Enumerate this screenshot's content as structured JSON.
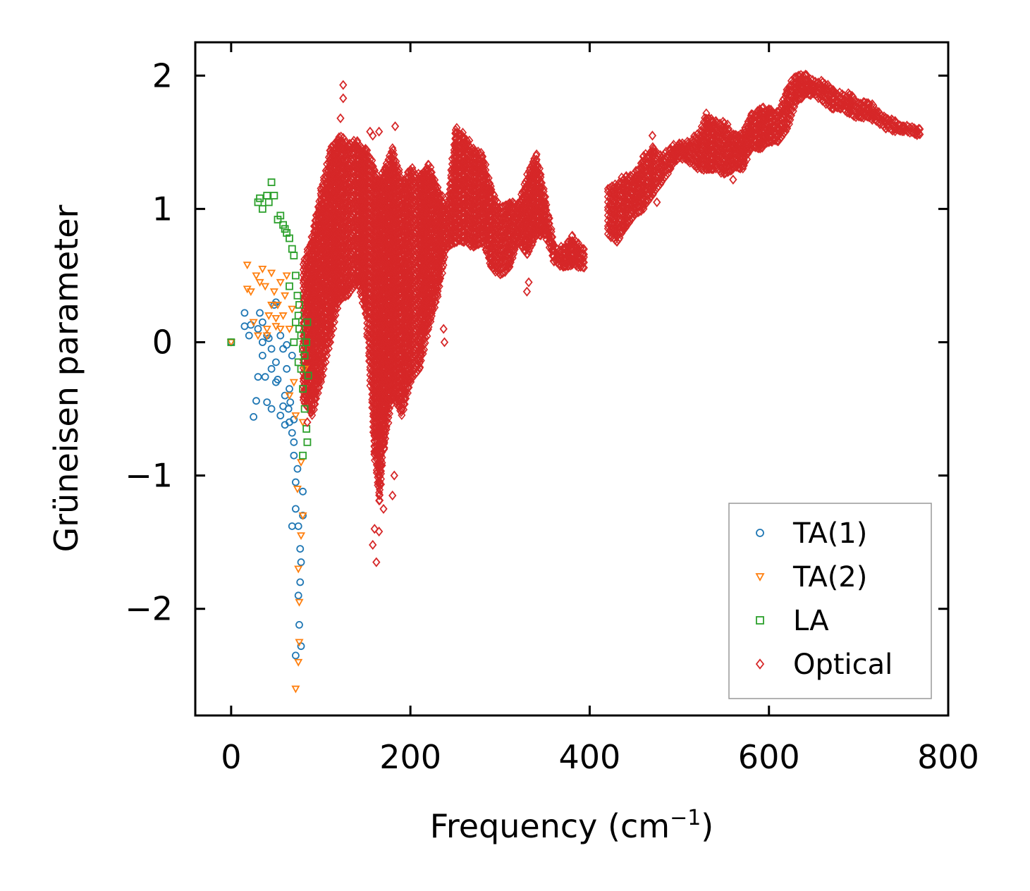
{
  "chart_data": {
    "type": "scatter",
    "title": "",
    "xlabel": "Frequency (cm",
    "xlabel_sup": "−1",
    "xlabel_close": ")",
    "ylabel": "Grüneisen parameter",
    "xlim": [
      -40,
      800
    ],
    "ylim": [
      -2.8,
      2.25
    ],
    "xticks": [
      0,
      200,
      400,
      600,
      800
    ],
    "xtick_labels": [
      "0",
      "200",
      "400",
      "600",
      "800"
    ],
    "yticks": [
      -2,
      -1,
      0,
      1,
      2
    ],
    "ytick_labels": [
      "−2",
      "−1",
      "0",
      "1",
      "2"
    ],
    "legend_position": "lower-right",
    "series": [
      {
        "name": "TA(1)",
        "marker": "circle",
        "color": "#1f77b4",
        "points": [
          [
            0,
            0
          ],
          [
            15,
            0.22
          ],
          [
            15,
            0.12
          ],
          [
            20,
            0.05
          ],
          [
            22,
            0.13
          ],
          [
            25,
            -0.56
          ],
          [
            28,
            -0.44
          ],
          [
            30,
            -0.26
          ],
          [
            32,
            0.22
          ],
          [
            35,
            0.15
          ],
          [
            35,
            0.0
          ],
          [
            35,
            -0.1
          ],
          [
            38,
            -0.26
          ],
          [
            40,
            -0.45
          ],
          [
            42,
            0.03
          ],
          [
            45,
            -0.5
          ],
          [
            45,
            -0.2
          ],
          [
            48,
            0.28
          ],
          [
            50,
            0.3
          ],
          [
            50,
            -0.15
          ],
          [
            52,
            -0.28
          ],
          [
            55,
            -0.55
          ],
          [
            55,
            0.05
          ],
          [
            58,
            -0.48
          ],
          [
            60,
            -0.62
          ],
          [
            60,
            -0.4
          ],
          [
            62,
            -0.2
          ],
          [
            62,
            -0.02
          ],
          [
            65,
            -0.6
          ],
          [
            65,
            -0.35
          ],
          [
            68,
            -0.68
          ],
          [
            68,
            -0.1
          ],
          [
            70,
            -0.75
          ],
          [
            70,
            -0.58
          ],
          [
            72,
            -1.25
          ],
          [
            72,
            -1.05
          ],
          [
            74,
            -0.95
          ],
          [
            75,
            -1.38
          ],
          [
            75,
            -1.9
          ],
          [
            76,
            -2.12
          ],
          [
            77,
            -1.8
          ],
          [
            77,
            -1.55
          ],
          [
            78,
            -1.65
          ],
          [
            78,
            -2.28
          ],
          [
            80,
            -1.12
          ],
          [
            80,
            -1.3
          ],
          [
            72,
            -2.35
          ],
          [
            70,
            -0.85
          ],
          [
            68,
            -1.38
          ],
          [
            66,
            -0.45
          ],
          [
            64,
            -0.5
          ],
          [
            58,
            -0.05
          ],
          [
            50,
            -0.3
          ],
          [
            45,
            -0.05
          ],
          [
            40,
            0.05
          ],
          [
            30,
            0.1
          ]
        ]
      },
      {
        "name": "TA(2)",
        "marker": "triangle-down",
        "color": "#ff7f0e",
        "points": [
          [
            0,
            0
          ],
          [
            18,
            0.58
          ],
          [
            18,
            0.4
          ],
          [
            22,
            0.38
          ],
          [
            25,
            0.15
          ],
          [
            28,
            0.5
          ],
          [
            30,
            0.05
          ],
          [
            32,
            0.45
          ],
          [
            35,
            0.55
          ],
          [
            38,
            0.42
          ],
          [
            40,
            0.1
          ],
          [
            42,
            0.2
          ],
          [
            45,
            0.52
          ],
          [
            48,
            0.38
          ],
          [
            50,
            0.12
          ],
          [
            52,
            0.28
          ],
          [
            55,
            0.45
          ],
          [
            58,
            0.2
          ],
          [
            60,
            0.35
          ],
          [
            62,
            0.5
          ],
          [
            65,
            0.1
          ],
          [
            65,
            -0.4
          ],
          [
            68,
            0.25
          ],
          [
            70,
            -0.3
          ],
          [
            72,
            -0.55
          ],
          [
            74,
            -1.1
          ],
          [
            75,
            -1.7
          ],
          [
            76,
            -1.95
          ],
          [
            76,
            -2.25
          ],
          [
            75,
            -2.4
          ],
          [
            72,
            -2.6
          ],
          [
            78,
            -0.9
          ],
          [
            78,
            -1.45
          ],
          [
            80,
            -0.6
          ],
          [
            80,
            -1.3
          ],
          [
            82,
            -0.2
          ],
          [
            55,
            0.1
          ],
          [
            50,
            0.18
          ],
          [
            45,
            0.28
          ],
          [
            40,
            0.05
          ]
        ]
      },
      {
        "name": "LA",
        "marker": "square",
        "color": "#2ca02c",
        "points": [
          [
            0,
            0
          ],
          [
            30,
            1.05
          ],
          [
            32,
            1.08
          ],
          [
            35,
            1.0
          ],
          [
            40,
            1.1
          ],
          [
            42,
            1.05
          ],
          [
            45,
            1.2
          ],
          [
            48,
            1.1
          ],
          [
            52,
            0.92
          ],
          [
            55,
            0.95
          ],
          [
            58,
            0.88
          ],
          [
            60,
            0.85
          ],
          [
            62,
            0.82
          ],
          [
            65,
            0.78
          ],
          [
            68,
            0.7
          ],
          [
            70,
            0.65
          ],
          [
            72,
            0.5
          ],
          [
            74,
            0.35
          ],
          [
            75,
            0.2
          ],
          [
            76,
            0.1
          ],
          [
            78,
            0.05
          ],
          [
            78,
            -0.2
          ],
          [
            80,
            -0.05
          ],
          [
            80,
            -0.35
          ],
          [
            82,
            -0.1
          ],
          [
            82,
            -0.5
          ],
          [
            84,
            0.0
          ],
          [
            84,
            -0.65
          ],
          [
            85,
            -0.75
          ],
          [
            85,
            0.15
          ],
          [
            86,
            -0.25
          ],
          [
            80,
            -0.85
          ],
          [
            75,
            -0.15
          ],
          [
            70,
            0.0
          ],
          [
            72,
            0.15
          ],
          [
            76,
            0.28
          ],
          [
            65,
            0.42
          ]
        ]
      },
      {
        "name": "Optical",
        "marker": "diamond",
        "color": "#d62728",
        "dense_band": [
          [
            80,
            -0.45,
            0.6
          ],
          [
            90,
            -0.55,
            0.8
          ],
          [
            100,
            -0.3,
            1.15
          ],
          [
            110,
            0.0,
            1.45
          ],
          [
            120,
            0.3,
            1.55
          ],
          [
            130,
            0.35,
            1.5
          ],
          [
            140,
            0.45,
            1.5
          ],
          [
            150,
            0.2,
            1.45
          ],
          [
            160,
            -0.9,
            1.3
          ],
          [
            165,
            -1.2,
            1.2
          ],
          [
            170,
            -0.8,
            1.3
          ],
          [
            180,
            -0.4,
            1.45
          ],
          [
            190,
            -0.55,
            1.2
          ],
          [
            200,
            -0.3,
            1.3
          ],
          [
            210,
            -0.2,
            1.25
          ],
          [
            220,
            0.1,
            1.35
          ],
          [
            230,
            0.35,
            1.15
          ],
          [
            240,
            0.7,
            1.0
          ],
          [
            250,
            0.75,
            1.6
          ],
          [
            260,
            0.75,
            1.55
          ],
          [
            270,
            0.7,
            1.45
          ],
          [
            280,
            0.75,
            1.4
          ],
          [
            290,
            0.55,
            1.15
          ],
          [
            300,
            0.5,
            1.0
          ],
          [
            310,
            0.55,
            1.05
          ],
          [
            320,
            0.75,
            1.05
          ],
          [
            330,
            0.65,
            1.25
          ],
          [
            340,
            0.8,
            1.4
          ],
          [
            350,
            0.8,
            1.1
          ],
          [
            360,
            0.6,
            0.72
          ],
          [
            370,
            0.55,
            0.7
          ],
          [
            380,
            0.58,
            0.8
          ],
          [
            390,
            0.55,
            0.7
          ],
          [
            420,
            0.8,
            1.15
          ],
          [
            430,
            0.75,
            1.2
          ],
          [
            440,
            0.85,
            1.25
          ],
          [
            450,
            0.95,
            1.25
          ],
          [
            460,
            1.0,
            1.4
          ],
          [
            470,
            1.1,
            1.45
          ],
          [
            480,
            1.2,
            1.4
          ],
          [
            490,
            1.3,
            1.45
          ],
          [
            500,
            1.38,
            1.5
          ],
          [
            510,
            1.35,
            1.5
          ],
          [
            520,
            1.3,
            1.55
          ],
          [
            530,
            1.28,
            1.7
          ],
          [
            540,
            1.3,
            1.65
          ],
          [
            550,
            1.25,
            1.65
          ],
          [
            560,
            1.3,
            1.55
          ],
          [
            570,
            1.3,
            1.55
          ],
          [
            580,
            1.45,
            1.7
          ],
          [
            590,
            1.45,
            1.75
          ],
          [
            600,
            1.5,
            1.75
          ],
          [
            610,
            1.5,
            1.72
          ],
          [
            620,
            1.6,
            1.9
          ],
          [
            630,
            1.8,
            2.0
          ],
          [
            640,
            1.85,
            2.0
          ],
          [
            650,
            1.85,
            1.95
          ],
          [
            660,
            1.8,
            1.95
          ],
          [
            670,
            1.75,
            1.9
          ],
          [
            680,
            1.75,
            1.85
          ],
          [
            690,
            1.7,
            1.85
          ],
          [
            700,
            1.68,
            1.8
          ],
          [
            710,
            1.68,
            1.8
          ],
          [
            720,
            1.65,
            1.75
          ],
          [
            730,
            1.6,
            1.7
          ],
          [
            740,
            1.58,
            1.65
          ],
          [
            750,
            1.58,
            1.62
          ],
          [
            765,
            1.55,
            1.6
          ]
        ],
        "points": [
          [
            125,
            1.93
          ],
          [
            125,
            1.83
          ],
          [
            122,
            1.68
          ],
          [
            165,
            1.58
          ],
          [
            183,
            1.62
          ],
          [
            155,
            1.58
          ],
          [
            158,
            1.55
          ],
          [
            110,
            1.2
          ],
          [
            108,
            1.05
          ],
          [
            95,
            0.95
          ],
          [
            158,
            -1.52
          ],
          [
            160,
            -1.4
          ],
          [
            165,
            -1.42
          ],
          [
            162,
            -1.65
          ],
          [
            170,
            -1.25
          ],
          [
            180,
            -1.15
          ],
          [
            182,
            -1.0
          ],
          [
            237,
            0.1
          ],
          [
            238,
            0.0
          ],
          [
            330,
            0.38
          ],
          [
            332,
            0.45
          ],
          [
            475,
            1.05
          ],
          [
            470,
            1.55
          ],
          [
            560,
            1.22
          ],
          [
            555,
            1.3
          ],
          [
            600,
            1.5
          ],
          [
            185,
            -0.45
          ],
          [
            190,
            -0.5
          ],
          [
            140,
            0.45
          ],
          [
            85,
            -0.6
          ]
        ]
      }
    ]
  },
  "legend": {
    "items": [
      {
        "label": "TA(1)",
        "color": "#1f77b4",
        "marker": "circle"
      },
      {
        "label": "TA(2)",
        "color": "#ff7f0e",
        "marker": "triangle-down"
      },
      {
        "label": "LA",
        "color": "#2ca02c",
        "marker": "square"
      },
      {
        "label": "Optical",
        "color": "#d62728",
        "marker": "diamond"
      }
    ]
  }
}
